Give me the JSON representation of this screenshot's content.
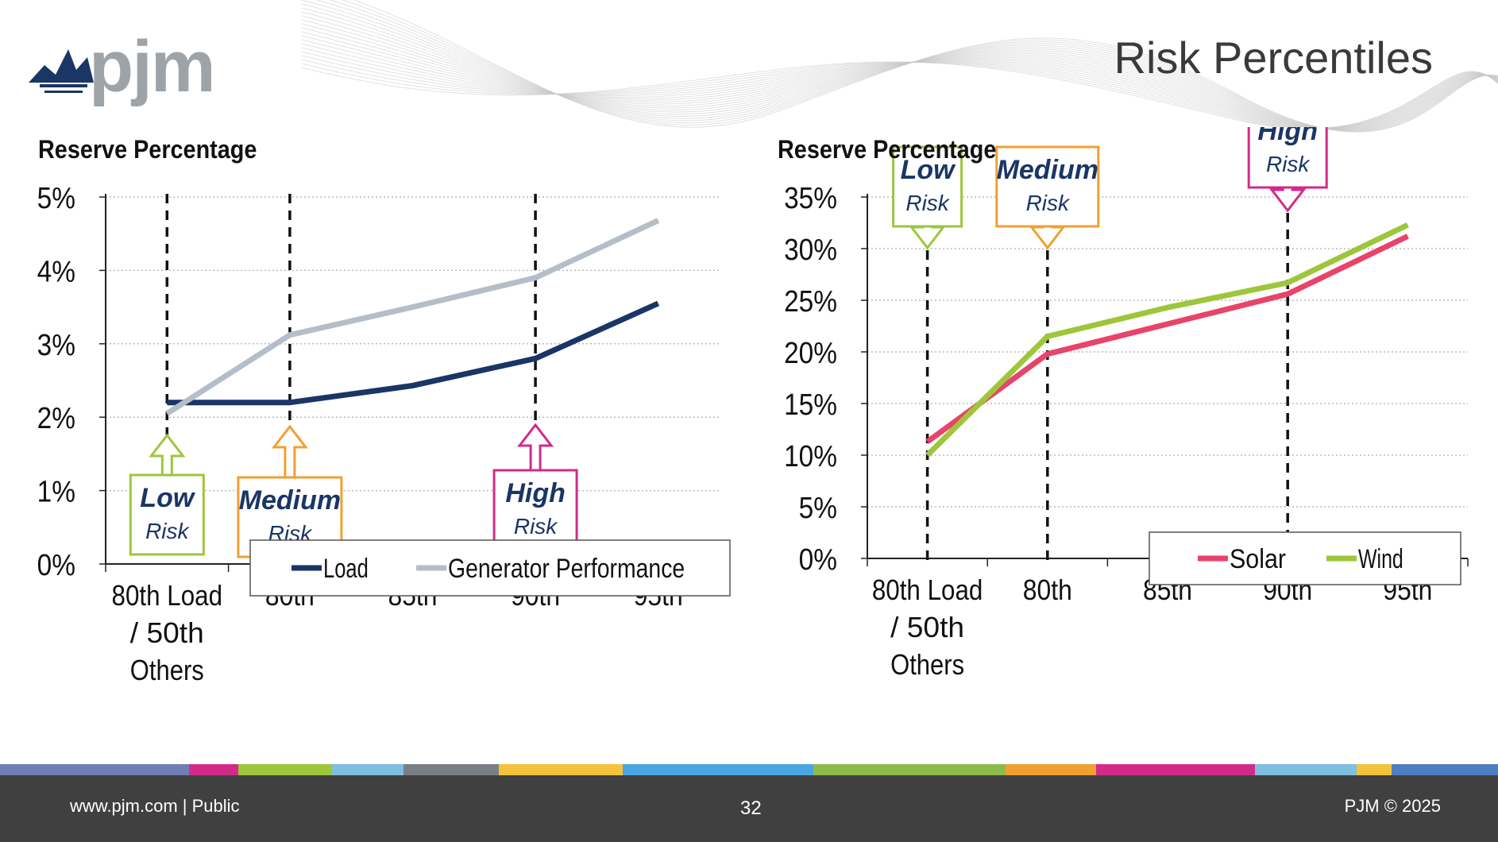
{
  "title": "Risk Percentiles",
  "logo_text": "pjm",
  "colors": {
    "load": "#1a3566",
    "generator": "#b4bec8",
    "solar": "#e8436a",
    "wind": "#9dc63b",
    "low_risk": "#9dc63b",
    "medium_risk": "#f0a030",
    "high_risk": "#d12b8a",
    "footer_bg": "#404040"
  },
  "chart_data": [
    {
      "type": "line",
      "ylabel": "Reserve Percentage",
      "categories": [
        "80th Load / 50th Others",
        "80th",
        "85th",
        "90th",
        "95th"
      ],
      "ylim": [
        0,
        5
      ],
      "yticks": [
        "0%",
        "1%",
        "2%",
        "3%",
        "4%",
        "5%"
      ],
      "grid": true,
      "series": [
        {
          "name": "Load",
          "values": [
            2.2,
            2.2,
            2.43,
            2.8,
            3.55
          ]
        },
        {
          "name": "Generator Performance",
          "values": [
            2.05,
            3.12,
            3.5,
            3.9,
            4.68
          ]
        }
      ],
      "risk_markers": [
        {
          "label": "Low",
          "sub": "Risk",
          "category_index": 0,
          "level": "low"
        },
        {
          "label": "Medium",
          "sub": "Risk",
          "category_index": 1,
          "level": "medium"
        },
        {
          "label": "High",
          "sub": "Risk",
          "category_index": 3,
          "level": "high"
        }
      ],
      "legend": [
        "Load",
        "Generator Performance"
      ],
      "legend_placement": "bottom"
    },
    {
      "type": "line",
      "ylabel": "Reserve Percentage",
      "categories": [
        "80th Load / 50th Others",
        "80th",
        "85th",
        "90th",
        "95th"
      ],
      "ylim": [
        0,
        35
      ],
      "yticks": [
        "0%",
        "5%",
        "10%",
        "15%",
        "20%",
        "25%",
        "30%",
        "35%"
      ],
      "grid": true,
      "series": [
        {
          "name": "Solar",
          "values": [
            11.3,
            19.8,
            22.7,
            25.6,
            31.2
          ]
        },
        {
          "name": "Wind",
          "values": [
            10,
            21.5,
            24.3,
            26.7,
            32.3
          ]
        }
      ],
      "risk_markers": [
        {
          "label": "Low",
          "sub": "Risk",
          "category_index": 0,
          "level": "low"
        },
        {
          "label": "Medium",
          "sub": "Risk",
          "category_index": 1,
          "level": "medium"
        },
        {
          "label": "High",
          "sub": "Risk",
          "category_index": 3,
          "level": "high"
        }
      ],
      "legend": [
        "Solar",
        "Wind"
      ],
      "legend_placement": "bottom-right"
    }
  ],
  "footer": {
    "left": "www.pjm.com | Public",
    "page": "32",
    "right": "PJM © 2025"
  },
  "stripe_colors": [
    "#6f7fb5",
    "#d12b8a",
    "#9dc63b",
    "#7fbfe0",
    "#7a7f85",
    "#f5c33b",
    "#4aa6e0",
    "#8dbb4a",
    "#f0a030",
    "#d12b8a",
    "#7fbfe0",
    "#f5c33b",
    "#4d7fc0"
  ]
}
